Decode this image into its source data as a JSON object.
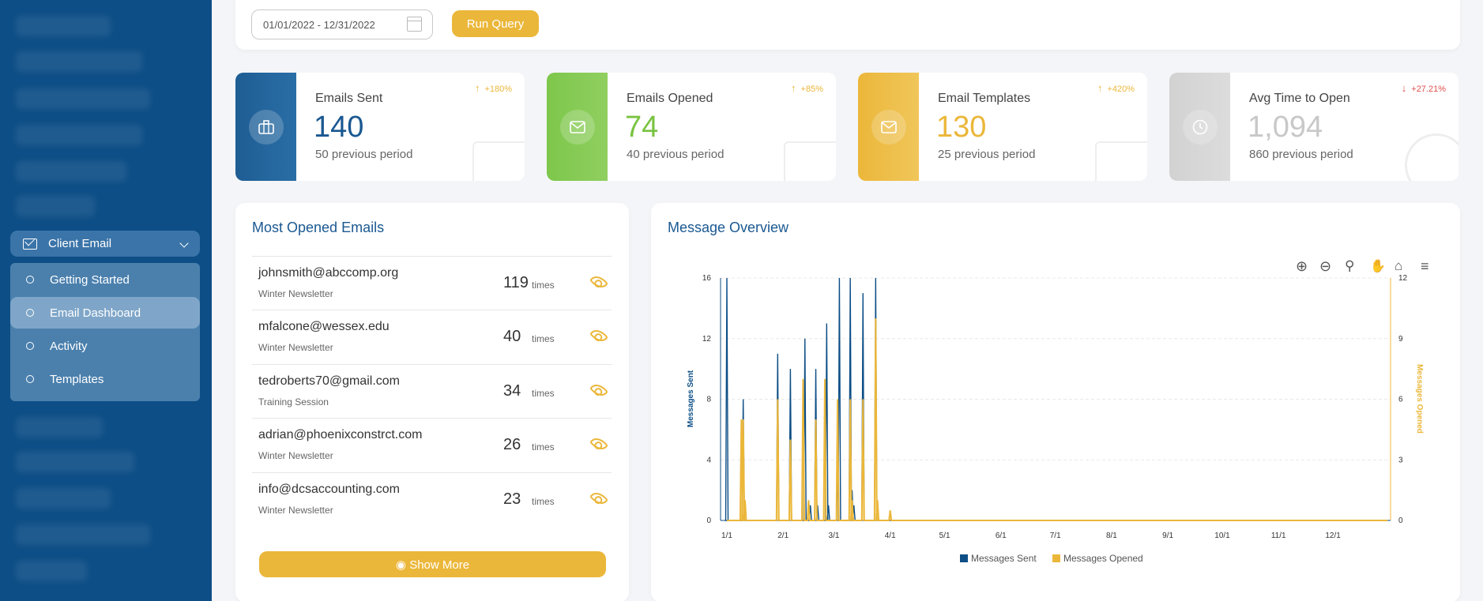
{
  "sidebar": {
    "group_label": "Client Email",
    "items": [
      {
        "label": "Getting Started",
        "active": false
      },
      {
        "label": "Email Dashboard",
        "active": true
      },
      {
        "label": "Activity",
        "active": false
      },
      {
        "label": "Templates",
        "active": false
      }
    ]
  },
  "query": {
    "date_range": "01/01/2022 - 12/31/2022",
    "run_label": "Run Query"
  },
  "stats": [
    {
      "title": "Emails Sent",
      "value": "140",
      "previous": "50 previous period",
      "delta": "+180%",
      "direction": "up",
      "color": "#1a5891",
      "band": "#1e5d94",
      "icon": "briefcase-icon"
    },
    {
      "title": "Emails Opened",
      "value": "74",
      "previous": "40 previous period",
      "delta": "+85%",
      "direction": "up",
      "color": "#79c342",
      "band": "#7dc74b",
      "icon": "envelope-icon"
    },
    {
      "title": "Email Templates",
      "value": "130",
      "previous": "25 previous period",
      "delta": "+420%",
      "direction": "up",
      "color": "#ebb73a",
      "band": "#ebb73a",
      "icon": "envelope-icon"
    },
    {
      "title": "Avg Time to Open",
      "value": "1,094",
      "previous": "860 previous period",
      "delta": "+27.21%",
      "direction": "down",
      "color": "#c8c8c8",
      "band": "#d5d5d5",
      "icon": "clock-icon"
    }
  ],
  "most_opened": {
    "title": "Most Opened Emails",
    "times_label": "times",
    "rows": [
      {
        "email": "johnsmith@abccomp.org",
        "subject": "Winter Newsletter",
        "count": "119"
      },
      {
        "email": "mfalcone@wessex.edu",
        "subject": "Winter Newsletter",
        "count": "40"
      },
      {
        "email": "tedroberts70@gmail.com",
        "subject": "Training Session",
        "count": "34"
      },
      {
        "email": "adrian@phoenixconstrct.com",
        "subject": "Winter Newsletter",
        "count": "26"
      },
      {
        "email": "info@dcsaccounting.com",
        "subject": "Winter Newsletter",
        "count": "23"
      }
    ],
    "show_more_label": "Show More"
  },
  "overview": {
    "title": "Message Overview"
  },
  "colors": {
    "sent": "#0d4e86",
    "opened": "#ebb73a"
  },
  "chart_data": {
    "type": "line",
    "x_ticks": [
      "1/1",
      "2/1",
      "3/1",
      "4/1",
      "5/1",
      "6/1",
      "7/1",
      "8/1",
      "9/1",
      "10/1",
      "11/1",
      "12/1"
    ],
    "y_left": {
      "label": "Messages Sent",
      "ticks": [
        0,
        4,
        8,
        12,
        16
      ],
      "range": [
        0,
        16
      ]
    },
    "y_right": {
      "label": "Messages Opened",
      "ticks": [
        0,
        3,
        6,
        9,
        12
      ],
      "range": [
        0,
        12
      ]
    },
    "legend": [
      "Messages Sent",
      "Messages Opened"
    ],
    "legend_position": "bottom",
    "x_range": [
      1,
      365
    ],
    "series": [
      {
        "name": "Messages Sent",
        "axis": "left",
        "points": [
          [
            1,
            16
          ],
          [
            10,
            8
          ],
          [
            11,
            1
          ],
          [
            29,
            11
          ],
          [
            36,
            10
          ],
          [
            44,
            12
          ],
          [
            47,
            1
          ],
          [
            50,
            10
          ],
          [
            51,
            1
          ],
          [
            56,
            13
          ],
          [
            57,
            1
          ],
          [
            62,
            3
          ],
          [
            63,
            16
          ],
          [
            69,
            16
          ],
          [
            70,
            2
          ],
          [
            71,
            1
          ],
          [
            76,
            15
          ],
          [
            83,
            16
          ],
          [
            84,
            1
          ]
        ]
      },
      {
        "name": "Messages Opened",
        "axis": "right",
        "points": [
          [
            9,
            5
          ],
          [
            10,
            5
          ],
          [
            11,
            1
          ],
          [
            29,
            6
          ],
          [
            36,
            4
          ],
          [
            43,
            7
          ],
          [
            46,
            1
          ],
          [
            50,
            5
          ],
          [
            55,
            7
          ],
          [
            62,
            6
          ],
          [
            69,
            6
          ],
          [
            70,
            1
          ],
          [
            76,
            6
          ],
          [
            83,
            10
          ],
          [
            84,
            1
          ],
          [
            91,
            0.5
          ]
        ]
      }
    ]
  }
}
